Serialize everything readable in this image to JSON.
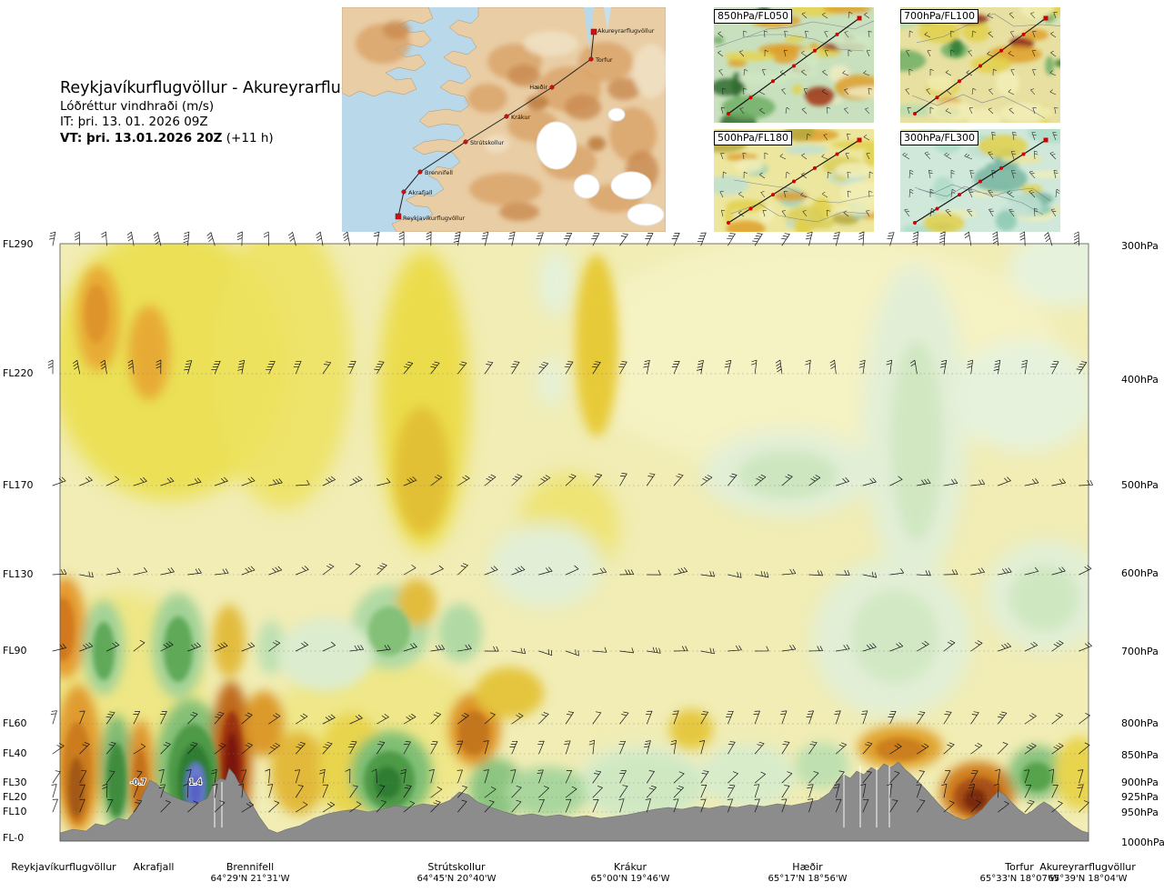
{
  "header": {
    "title": "Reykjavíkurflugvöllur - Akureyrarflugvöllur",
    "subtitle": "Lóðréttur vindhraði (m/s)",
    "init_line": "IT: þri. 13. 01. 2026 09Z",
    "valid_label": "VT: þri. 13.01.2026 20Z",
    "valid_suffix": " (+11 h)"
  },
  "route_map": {
    "waypoints": [
      "Reykjavíkurflugvöllur",
      "Akrafjall",
      "Brennifell",
      "Strútskollur",
      "Krákur",
      "Hæðir",
      "Torfur",
      "Akureyrarflugvöllur"
    ]
  },
  "mini_maps": [
    {
      "label": "850hPa/FL050"
    },
    {
      "label": "700hPa/FL100"
    },
    {
      "label": "500hPa/FL180"
    },
    {
      "label": "300hPa/FL300"
    }
  ],
  "chart_data": {
    "type": "heatmap",
    "title": "Lóðréttur vindhraði (m/s)",
    "field_units": "m/s",
    "x_stations": [
      {
        "name": "Reykjavíkurflugvöllur",
        "coords": ""
      },
      {
        "name": "Akrafjall",
        "coords": ""
      },
      {
        "name": "Brennifell",
        "coords": "64°29'N 21°31'W"
      },
      {
        "name": "Strútskollur",
        "coords": "64°45'N 20°40'W"
      },
      {
        "name": "Krákur",
        "coords": "65°00'N 19°46'W"
      },
      {
        "name": "Hæðir",
        "coords": "65°17'N 18°56'W"
      },
      {
        "name": "Torfur",
        "coords": "65°33'N 18°07'W"
      },
      {
        "name": "Akureyrarflugvöllur",
        "coords": "65°39'N 18°04'W"
      }
    ],
    "left_axis_ticks": [
      "FL290",
      "FL220",
      "FL170",
      "FL130",
      "FL90",
      "FL60",
      "FL40",
      "FL30",
      "FL20",
      "FL10",
      "FL-0"
    ],
    "right_axis_ticks": [
      "300hPa",
      "400hPa",
      "500hPa",
      "600hPa",
      "700hPa",
      "800hPa",
      "850hPa",
      "900hPa",
      "925hPa",
      "950hPa",
      "1000hPa"
    ],
    "extreme_labels": [
      {
        "value": "-0.7",
        "near_station": "Akrafjall",
        "near_level": "FL30"
      },
      {
        "value": "1.4",
        "near_station": "Brennifell",
        "near_level": "FL30"
      }
    ],
    "colors": {
      "downdraft_scale": [
        "#f2eeb7",
        "#e8d44e",
        "#e0a22e",
        "#c06a1e",
        "#7c150c"
      ],
      "updraft_scale": [
        "#e2efd6",
        "#aed8a2",
        "#57a34c",
        "#2e7d32",
        "#5560c4"
      ],
      "terrain": "#8c8c8c"
    }
  }
}
